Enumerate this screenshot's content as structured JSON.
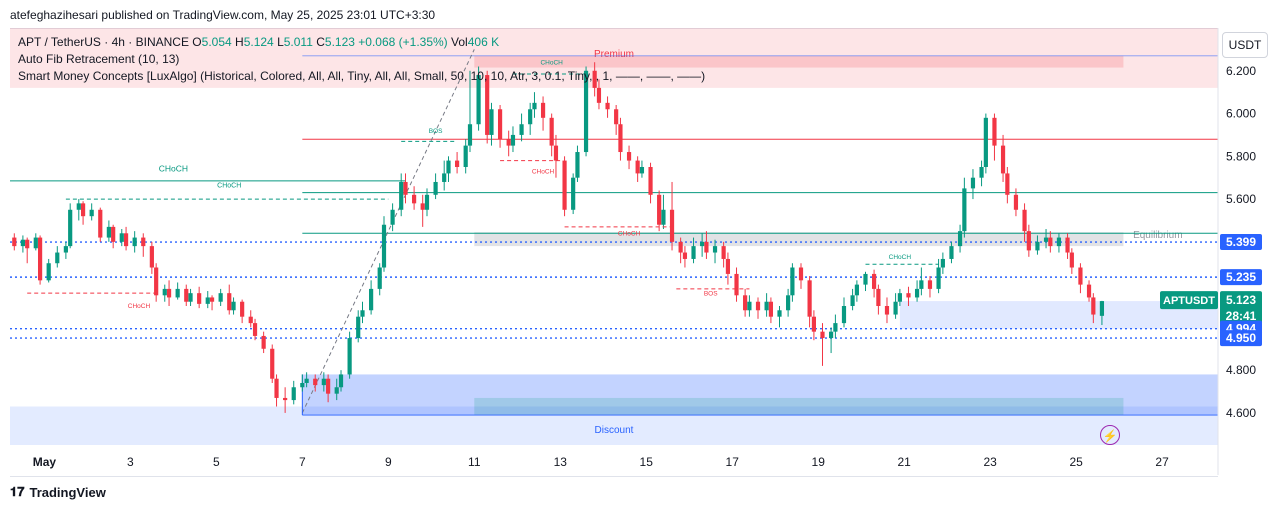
{
  "publisher_line": "atefeghazihesari published on TradingView.com, May 25, 2025 23:01 UTC+3:30",
  "currency_button": "USDT",
  "legend": {
    "symbol": "APT / TetherUS · 4h · BINANCE",
    "o_label": "O",
    "o_value": "5.054",
    "h_label": "H",
    "h_value": "5.124",
    "l_label": "L",
    "l_value": "5.011",
    "c_label": "C",
    "c_value": "5.123",
    "change": "+0.068 (+1.35%)",
    "vol_label": "Vol",
    "vol_value": "406 K",
    "indicator1": "Auto Fib Retracement (10, 13)",
    "indicator2": "Smart Money Concepts [LuxAlgo] (Historical, Colored, All, All, Tiny, All, All, Small, 50, 10, 10, Atr, 3, 0.1, Tiny, , 1, ——, ——, ——)"
  },
  "footer": {
    "logo_text": "TradingView"
  },
  "colors": {
    "up": "#089981",
    "down": "#f23645",
    "premium": "#f23645",
    "discount": "#2962ff",
    "accent_blue": "#2962ff"
  },
  "chart_data": {
    "type": "candlestick",
    "symbol": "APTUSDT",
    "timeframe": "4h",
    "ylim": [
      4.45,
      6.4
    ],
    "y_ticks": [
      "6.200",
      "6.000",
      "5.800",
      "5.600",
      "4.800",
      "4.600"
    ],
    "x_ticks": [
      {
        "label": "May",
        "day": 1
      },
      {
        "label": "3",
        "day": 3
      },
      {
        "label": "5",
        "day": 5
      },
      {
        "label": "7",
        "day": 7
      },
      {
        "label": "9",
        "day": 9
      },
      {
        "label": "11",
        "day": 11
      },
      {
        "label": "13",
        "day": 13
      },
      {
        "label": "15",
        "day": 15
      },
      {
        "label": "17",
        "day": 17
      },
      {
        "label": "19",
        "day": 19
      },
      {
        "label": "21",
        "day": 21
      },
      {
        "label": "23",
        "day": 23
      },
      {
        "label": "25",
        "day": 25
      },
      {
        "label": "27",
        "day": 27
      }
    ],
    "x_range_days": [
      0.2,
      28.3
    ],
    "price_badges": [
      {
        "label": "5.399",
        "price": 5.399
      },
      {
        "label": "5.235",
        "price": 5.235
      },
      {
        "label": "APTUSDT",
        "value": "5.123",
        "countdown": "28:41",
        "price": 5.123
      },
      {
        "label": "4.994",
        "price": 4.994
      },
      {
        "label": "4.950",
        "price": 4.95
      }
    ],
    "zones": [
      {
        "name": "premium",
        "label": "Premium",
        "top": 6.4,
        "bottom": 6.12
      },
      {
        "name": "discount",
        "label": "Discount",
        "top": 4.63,
        "bottom": 4.45
      },
      {
        "name": "equilibrium",
        "label": "Equilibrium",
        "top": 5.445,
        "bottom": 5.38
      }
    ],
    "levels": [
      {
        "price": 5.88,
        "color": "#f23645"
      },
      {
        "price": 5.63,
        "color": "#089981"
      },
      {
        "price": 5.44,
        "color": "#089981"
      },
      {
        "price": 5.399,
        "color": "#2962ff",
        "dotted": true
      },
      {
        "price": 5.235,
        "color": "#2962ff",
        "dotted": true
      },
      {
        "price": 4.994,
        "color": "#2962ff",
        "dotted": true
      },
      {
        "price": 4.95,
        "color": "#2962ff",
        "dotted": true
      }
    ],
    "structure_labels": [
      "CHoCH",
      "CHoCH",
      "CHoCH",
      "BOS",
      "CHoCH",
      "CHoCH",
      "BOS",
      "CHoCH",
      "CHoCH"
    ],
    "candles": [
      [
        0.3,
        5.42,
        5.38,
        5.44,
        5.36
      ],
      [
        0.5,
        5.38,
        5.41,
        5.43,
        5.35
      ],
      [
        0.6,
        5.41,
        5.37,
        5.42,
        5.3
      ],
      [
        0.8,
        5.37,
        5.42,
        5.44,
        5.36
      ],
      [
        0.9,
        5.42,
        5.22,
        5.43,
        5.2
      ],
      [
        1.1,
        5.22,
        5.3,
        5.32,
        5.21
      ],
      [
        1.3,
        5.3,
        5.35,
        5.38,
        5.28
      ],
      [
        1.5,
        5.35,
        5.38,
        5.4,
        5.32
      ],
      [
        1.6,
        5.38,
        5.55,
        5.58,
        5.37
      ],
      [
        1.8,
        5.55,
        5.58,
        5.6,
        5.5
      ],
      [
        1.9,
        5.58,
        5.52,
        5.59,
        5.48
      ],
      [
        2.1,
        5.52,
        5.55,
        5.58,
        5.5
      ],
      [
        2.3,
        5.55,
        5.42,
        5.56,
        5.4
      ],
      [
        2.5,
        5.42,
        5.47,
        5.5,
        5.4
      ],
      [
        2.6,
        5.47,
        5.4,
        5.48,
        5.37
      ],
      [
        2.8,
        5.4,
        5.44,
        5.46,
        5.38
      ],
      [
        2.9,
        5.44,
        5.38,
        5.47,
        5.36
      ],
      [
        3.1,
        5.38,
        5.42,
        5.45,
        5.35
      ],
      [
        3.3,
        5.42,
        5.38,
        5.44,
        5.33
      ],
      [
        3.5,
        5.38,
        5.28,
        5.4,
        5.25
      ],
      [
        3.6,
        5.28,
        5.15,
        5.3,
        5.12
      ],
      [
        3.8,
        5.15,
        5.18,
        5.2,
        5.12
      ],
      [
        3.9,
        5.18,
        5.14,
        5.22,
        5.1
      ],
      [
        4.1,
        5.14,
        5.18,
        5.21,
        5.13
      ],
      [
        4.3,
        5.18,
        5.12,
        5.2,
        5.1
      ],
      [
        4.4,
        5.12,
        5.16,
        5.18,
        5.1
      ],
      [
        4.6,
        5.16,
        5.11,
        5.19,
        5.09
      ],
      [
        4.8,
        5.11,
        5.14,
        5.17,
        5.09
      ],
      [
        4.9,
        5.14,
        5.12,
        5.15,
        5.08
      ],
      [
        5.1,
        5.12,
        5.16,
        5.18,
        5.1
      ],
      [
        5.3,
        5.16,
        5.08,
        5.2,
        5.06
      ],
      [
        5.4,
        5.08,
        5.12,
        5.14,
        5.06
      ],
      [
        5.6,
        5.12,
        5.05,
        5.13,
        5.02
      ],
      [
        5.8,
        5.05,
        5.02,
        5.08,
        5.0
      ],
      [
        5.9,
        5.02,
        4.96,
        5.04,
        4.94
      ],
      [
        6.1,
        4.96,
        4.9,
        4.98,
        4.88
      ],
      [
        6.3,
        4.9,
        4.76,
        4.92,
        4.74
      ],
      [
        6.4,
        4.76,
        4.67,
        4.78,
        4.63
      ],
      [
        6.6,
        4.67,
        4.66,
        4.72,
        4.6
      ],
      [
        6.8,
        4.66,
        4.72,
        4.75,
        4.64
      ],
      [
        7.0,
        4.72,
        4.74,
        4.78,
        4.7
      ],
      [
        7.1,
        4.74,
        4.76,
        4.79,
        4.72
      ],
      [
        7.3,
        4.76,
        4.73,
        4.78,
        4.7
      ],
      [
        7.5,
        4.73,
        4.76,
        4.79,
        4.7
      ],
      [
        7.6,
        4.76,
        4.69,
        4.78,
        4.65
      ],
      [
        7.8,
        4.69,
        4.72,
        4.76,
        4.66
      ],
      [
        7.9,
        4.72,
        4.78,
        4.8,
        4.7
      ],
      [
        8.1,
        4.78,
        4.95,
        4.98,
        4.76
      ],
      [
        8.3,
        4.95,
        5.05,
        5.08,
        4.93
      ],
      [
        8.4,
        5.05,
        5.08,
        5.12,
        5.02
      ],
      [
        8.6,
        5.08,
        5.18,
        5.22,
        5.06
      ],
      [
        8.8,
        5.18,
        5.28,
        5.3,
        5.15
      ],
      [
        8.9,
        5.28,
        5.48,
        5.52,
        5.26
      ],
      [
        9.1,
        5.48,
        5.55,
        5.58,
        5.45
      ],
      [
        9.3,
        5.55,
        5.68,
        5.72,
        5.52
      ],
      [
        9.4,
        5.68,
        5.62,
        5.72,
        5.58
      ],
      [
        9.6,
        5.62,
        5.58,
        5.66,
        5.55
      ],
      [
        9.8,
        5.58,
        5.55,
        5.62,
        5.47
      ],
      [
        9.9,
        5.55,
        5.62,
        5.65,
        5.52
      ],
      [
        10.1,
        5.62,
        5.68,
        5.72,
        5.6
      ],
      [
        10.3,
        5.68,
        5.72,
        5.78,
        5.64
      ],
      [
        10.4,
        5.72,
        5.78,
        5.8,
        5.68
      ],
      [
        10.6,
        5.78,
        5.75,
        5.82,
        5.72
      ],
      [
        10.8,
        5.75,
        5.85,
        5.88,
        5.72
      ],
      [
        10.9,
        5.85,
        5.95,
        6.2,
        5.82
      ],
      [
        11.1,
        5.95,
        6.18,
        6.22,
        5.92
      ],
      [
        11.3,
        6.18,
        5.9,
        6.2,
        5.86
      ],
      [
        11.4,
        5.9,
        6.02,
        6.05,
        5.85
      ],
      [
        11.6,
        6.02,
        5.88,
        6.04,
        5.84
      ],
      [
        11.8,
        5.88,
        5.85,
        5.92,
        5.8
      ],
      [
        11.9,
        5.85,
        5.9,
        5.94,
        5.82
      ],
      [
        12.1,
        5.9,
        5.95,
        6.0,
        5.87
      ],
      [
        12.3,
        5.95,
        6.02,
        6.05,
        5.9
      ],
      [
        12.4,
        6.02,
        6.05,
        6.1,
        5.98
      ],
      [
        12.6,
        6.05,
        5.98,
        6.08,
        5.92
      ],
      [
        12.8,
        5.98,
        5.85,
        6.0,
        5.8
      ],
      [
        12.9,
        5.85,
        5.78,
        5.9,
        5.7
      ],
      [
        13.1,
        5.78,
        5.55,
        5.8,
        5.52
      ],
      [
        13.3,
        5.55,
        5.7,
        5.72,
        5.53
      ],
      [
        13.4,
        5.7,
        5.82,
        5.85,
        5.68
      ],
      [
        13.6,
        5.82,
        6.2,
        6.22,
        5.8
      ],
      [
        13.8,
        6.2,
        6.12,
        6.24,
        6.08
      ],
      [
        13.9,
        6.12,
        6.05,
        6.16,
        6.02
      ],
      [
        14.1,
        6.05,
        6.02,
        6.08,
        5.98
      ],
      [
        14.3,
        6.02,
        5.95,
        6.04,
        5.9
      ],
      [
        14.4,
        5.95,
        5.82,
        5.98,
        5.78
      ],
      [
        14.6,
        5.82,
        5.78,
        5.85,
        5.74
      ],
      [
        14.8,
        5.78,
        5.72,
        5.8,
        5.68
      ],
      [
        14.9,
        5.72,
        5.75,
        5.78,
        5.7
      ],
      [
        15.1,
        5.75,
        5.62,
        5.77,
        5.58
      ],
      [
        15.3,
        5.62,
        5.48,
        5.64,
        5.45
      ],
      [
        15.4,
        5.48,
        5.55,
        5.62,
        5.46
      ],
      [
        15.6,
        5.55,
        5.4,
        5.68,
        5.36
      ],
      [
        15.8,
        5.4,
        5.35,
        5.42,
        5.3
      ],
      [
        15.9,
        5.35,
        5.32,
        5.38,
        5.28
      ],
      [
        16.1,
        5.32,
        5.38,
        5.42,
        5.3
      ],
      [
        16.3,
        5.38,
        5.4,
        5.44,
        5.33
      ],
      [
        16.4,
        5.4,
        5.35,
        5.45,
        5.32
      ],
      [
        16.6,
        5.35,
        5.38,
        5.41,
        5.3
      ],
      [
        16.8,
        5.38,
        5.32,
        5.4,
        5.28
      ],
      [
        16.9,
        5.32,
        5.25,
        5.35,
        5.2
      ],
      [
        17.1,
        5.25,
        5.15,
        5.28,
        5.12
      ],
      [
        17.3,
        5.15,
        5.08,
        5.18,
        5.05
      ],
      [
        17.4,
        5.08,
        5.12,
        5.15,
        5.05
      ],
      [
        17.6,
        5.12,
        5.08,
        5.14,
        5.04
      ],
      [
        17.8,
        5.08,
        5.12,
        5.16,
        5.05
      ],
      [
        17.9,
        5.12,
        5.05,
        5.14,
        5.02
      ],
      [
        18.1,
        5.05,
        5.08,
        5.1,
        5.0
      ],
      [
        18.3,
        5.08,
        5.15,
        5.18,
        5.05
      ],
      [
        18.4,
        5.15,
        5.28,
        5.3,
        5.12
      ],
      [
        18.6,
        5.28,
        5.22,
        5.3,
        5.18
      ],
      [
        18.8,
        5.22,
        5.05,
        5.24,
        5.0
      ],
      [
        18.9,
        5.05,
        4.98,
        5.08,
        4.94
      ],
      [
        19.1,
        4.98,
        4.95,
        5.02,
        4.82
      ],
      [
        19.3,
        4.95,
        4.98,
        5.0,
        4.88
      ],
      [
        19.4,
        4.98,
        5.02,
        5.06,
        4.95
      ],
      [
        19.6,
        5.02,
        5.1,
        5.14,
        5.0
      ],
      [
        19.8,
        5.1,
        5.15,
        5.18,
        5.08
      ],
      [
        19.9,
        5.15,
        5.2,
        5.22,
        5.12
      ],
      [
        20.1,
        5.2,
        5.25,
        5.26,
        5.17
      ],
      [
        20.3,
        5.25,
        5.18,
        5.27,
        5.14
      ],
      [
        20.4,
        5.18,
        5.1,
        5.2,
        5.06
      ],
      [
        20.6,
        5.1,
        5.06,
        5.14,
        5.02
      ],
      [
        20.8,
        5.06,
        5.12,
        5.16,
        5.04
      ],
      [
        20.9,
        5.12,
        5.16,
        5.18,
        5.1
      ],
      [
        21.1,
        5.16,
        5.14,
        5.19,
        5.1
      ],
      [
        21.3,
        5.14,
        5.18,
        5.22,
        5.12
      ],
      [
        21.4,
        5.18,
        5.22,
        5.28,
        5.15
      ],
      [
        21.6,
        5.22,
        5.18,
        5.24,
        5.14
      ],
      [
        21.8,
        5.18,
        5.28,
        5.32,
        5.16
      ],
      [
        21.9,
        5.28,
        5.32,
        5.35,
        5.25
      ],
      [
        22.1,
        5.32,
        5.38,
        5.4,
        5.3
      ],
      [
        22.3,
        5.38,
        5.45,
        5.48,
        5.35
      ],
      [
        22.4,
        5.45,
        5.65,
        5.7,
        5.42
      ],
      [
        22.6,
        5.65,
        5.7,
        5.74,
        5.6
      ],
      [
        22.8,
        5.7,
        5.75,
        5.78,
        5.66
      ],
      [
        22.9,
        5.75,
        5.98,
        6.0,
        5.72
      ],
      [
        23.1,
        5.98,
        5.85,
        6.0,
        5.78
      ],
      [
        23.3,
        5.85,
        5.72,
        5.9,
        5.68
      ],
      [
        23.4,
        5.72,
        5.62,
        5.75,
        5.58
      ],
      [
        23.6,
        5.62,
        5.55,
        5.65,
        5.52
      ],
      [
        23.8,
        5.55,
        5.45,
        5.58,
        5.4
      ],
      [
        23.9,
        5.45,
        5.36,
        5.48,
        5.33
      ],
      [
        24.1,
        5.36,
        5.4,
        5.43,
        5.34
      ],
      [
        24.3,
        5.4,
        5.42,
        5.46,
        5.37
      ],
      [
        24.4,
        5.42,
        5.38,
        5.45,
        5.35
      ],
      [
        24.6,
        5.38,
        5.42,
        5.44,
        5.35
      ],
      [
        24.8,
        5.42,
        5.35,
        5.44,
        5.32
      ],
      [
        24.9,
        5.35,
        5.28,
        5.37,
        5.25
      ],
      [
        25.1,
        5.28,
        5.2,
        5.3,
        5.16
      ],
      [
        25.3,
        5.2,
        5.14,
        5.22,
        5.12
      ],
      [
        25.4,
        5.14,
        5.06,
        5.16,
        5.02
      ],
      [
        25.6,
        5.054,
        5.123,
        5.124,
        5.011
      ]
    ]
  }
}
